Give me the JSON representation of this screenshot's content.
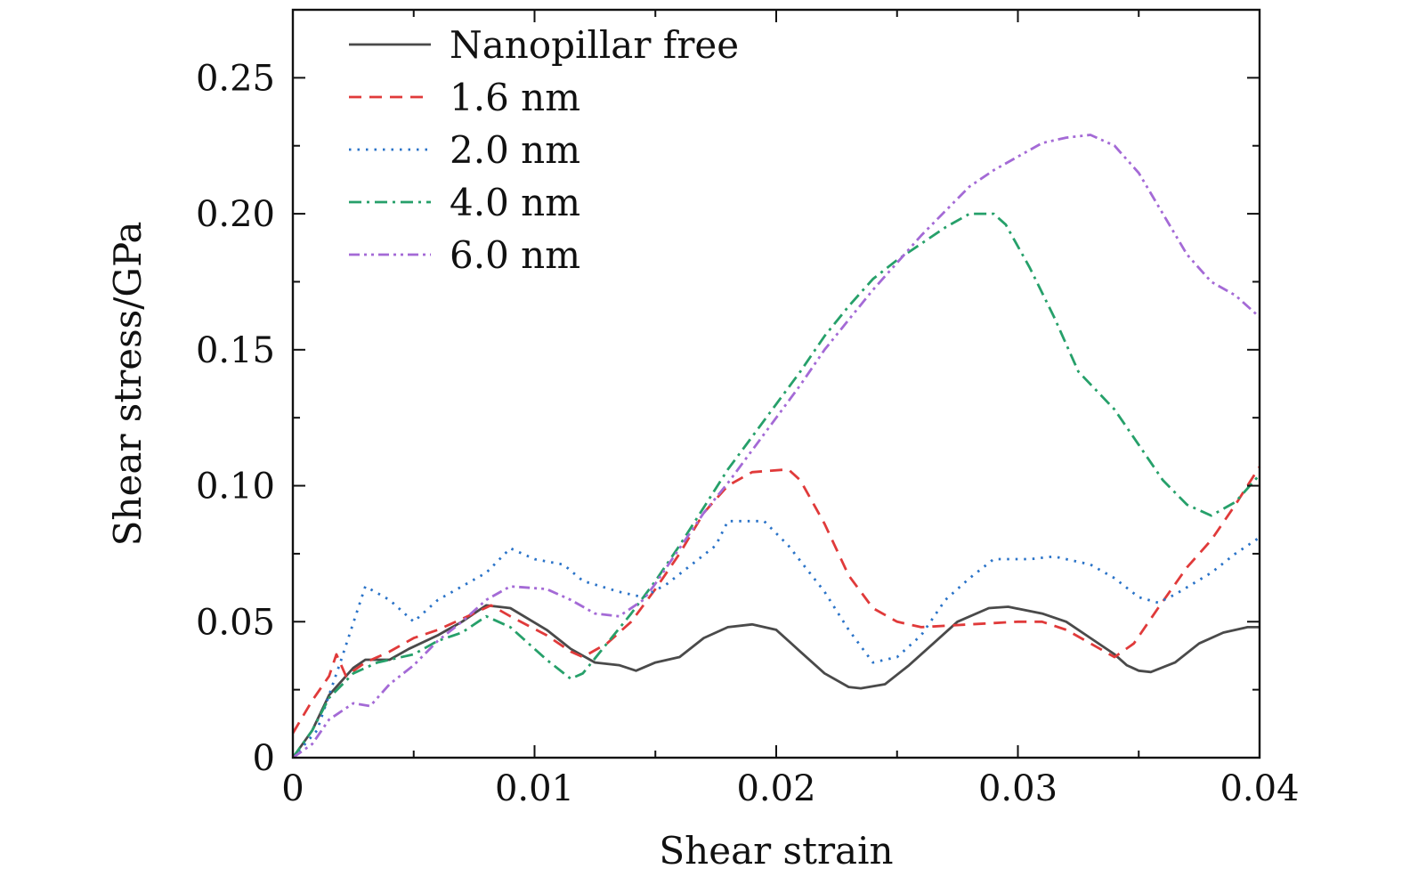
{
  "chart_data": {
    "type": "line",
    "xlabel": "Shear strain",
    "ylabel": "Shear stress/GPa",
    "xlim": [
      0,
      0.04
    ],
    "ylim": [
      0,
      0.275
    ],
    "xticks": [
      0,
      0.01,
      0.02,
      0.03,
      0.04
    ],
    "xtick_labels": [
      "0",
      "0.01",
      "0.02",
      "0.03",
      "0.04"
    ],
    "yticks": [
      0,
      0.05,
      0.1,
      0.15,
      0.2,
      0.25
    ],
    "ytick_labels": [
      "0",
      "0.05",
      "0.10",
      "0.15",
      "0.20",
      "0.25"
    ],
    "grid": false,
    "legend_position": "top-left",
    "series": [
      {
        "name": "Nanopillar free",
        "color": "#4a4a4a",
        "dash": "solid",
        "points": [
          [
            0,
            0
          ],
          [
            0.0008,
            0.01
          ],
          [
            0.0015,
            0.023
          ],
          [
            0.0025,
            0.033
          ],
          [
            0.003,
            0.036
          ],
          [
            0.004,
            0.036
          ],
          [
            0.0048,
            0.04
          ],
          [
            0.006,
            0.045
          ],
          [
            0.007,
            0.05
          ],
          [
            0.008,
            0.056
          ],
          [
            0.009,
            0.055
          ],
          [
            0.0105,
            0.047
          ],
          [
            0.0115,
            0.04
          ],
          [
            0.0125,
            0.035
          ],
          [
            0.0135,
            0.034
          ],
          [
            0.0142,
            0.032
          ],
          [
            0.015,
            0.035
          ],
          [
            0.016,
            0.037
          ],
          [
            0.017,
            0.044
          ],
          [
            0.018,
            0.048
          ],
          [
            0.019,
            0.049
          ],
          [
            0.02,
            0.047
          ],
          [
            0.021,
            0.039
          ],
          [
            0.022,
            0.031
          ],
          [
            0.023,
            0.026
          ],
          [
            0.0235,
            0.0255
          ],
          [
            0.0245,
            0.027
          ],
          [
            0.0255,
            0.034
          ],
          [
            0.0265,
            0.042
          ],
          [
            0.0275,
            0.05
          ],
          [
            0.0288,
            0.055
          ],
          [
            0.0296,
            0.0555
          ],
          [
            0.031,
            0.053
          ],
          [
            0.032,
            0.05
          ],
          [
            0.033,
            0.044
          ],
          [
            0.034,
            0.038
          ],
          [
            0.0345,
            0.034
          ],
          [
            0.035,
            0.032
          ],
          [
            0.0355,
            0.0315
          ],
          [
            0.0365,
            0.035
          ],
          [
            0.0375,
            0.042
          ],
          [
            0.0385,
            0.046
          ],
          [
            0.0395,
            0.048
          ],
          [
            0.04,
            0.048
          ]
        ]
      },
      {
        "name": "1.6 nm",
        "color": "#e03a3a",
        "dash": "dashed",
        "points": [
          [
            0,
            0.009
          ],
          [
            0.0008,
            0.021
          ],
          [
            0.0015,
            0.03
          ],
          [
            0.0018,
            0.038
          ],
          [
            0.0022,
            0.03
          ],
          [
            0.003,
            0.035
          ],
          [
            0.004,
            0.039
          ],
          [
            0.005,
            0.044
          ],
          [
            0.006,
            0.047
          ],
          [
            0.007,
            0.051
          ],
          [
            0.0082,
            0.056
          ],
          [
            0.009,
            0.052
          ],
          [
            0.0105,
            0.045
          ],
          [
            0.0115,
            0.039
          ],
          [
            0.012,
            0.037
          ],
          [
            0.013,
            0.042
          ],
          [
            0.014,
            0.05
          ],
          [
            0.015,
            0.062
          ],
          [
            0.016,
            0.075
          ],
          [
            0.017,
            0.09
          ],
          [
            0.018,
            0.1
          ],
          [
            0.019,
            0.105
          ],
          [
            0.0205,
            0.106
          ],
          [
            0.021,
            0.102
          ],
          [
            0.022,
            0.086
          ],
          [
            0.023,
            0.067
          ],
          [
            0.024,
            0.055
          ],
          [
            0.025,
            0.05
          ],
          [
            0.026,
            0.048
          ],
          [
            0.028,
            0.049
          ],
          [
            0.03,
            0.05
          ],
          [
            0.031,
            0.05
          ],
          [
            0.032,
            0.047
          ],
          [
            0.033,
            0.042
          ],
          [
            0.034,
            0.037
          ],
          [
            0.0348,
            0.042
          ],
          [
            0.0358,
            0.055
          ],
          [
            0.037,
            0.07
          ],
          [
            0.038,
            0.08
          ],
          [
            0.039,
            0.093
          ],
          [
            0.04,
            0.107
          ]
        ]
      },
      {
        "name": "2.0 nm",
        "color": "#2a73c8",
        "dash": "dotted",
        "points": [
          [
            0,
            0
          ],
          [
            0.001,
            0.01
          ],
          [
            0.002,
            0.036
          ],
          [
            0.003,
            0.063
          ],
          [
            0.004,
            0.058
          ],
          [
            0.005,
            0.05
          ],
          [
            0.006,
            0.058
          ],
          [
            0.007,
            0.063
          ],
          [
            0.008,
            0.068
          ],
          [
            0.009,
            0.077
          ],
          [
            0.01,
            0.073
          ],
          [
            0.0112,
            0.071
          ],
          [
            0.012,
            0.065
          ],
          [
            0.0135,
            0.061
          ],
          [
            0.0145,
            0.059
          ],
          [
            0.0155,
            0.064
          ],
          [
            0.0165,
            0.071
          ],
          [
            0.0175,
            0.078
          ],
          [
            0.018,
            0.087
          ],
          [
            0.0195,
            0.087
          ],
          [
            0.0205,
            0.078
          ],
          [
            0.022,
            0.061
          ],
          [
            0.023,
            0.047
          ],
          [
            0.024,
            0.035
          ],
          [
            0.025,
            0.037
          ],
          [
            0.026,
            0.045
          ],
          [
            0.027,
            0.058
          ],
          [
            0.028,
            0.066
          ],
          [
            0.029,
            0.073
          ],
          [
            0.0305,
            0.073
          ],
          [
            0.0315,
            0.074
          ],
          [
            0.033,
            0.071
          ],
          [
            0.034,
            0.066
          ],
          [
            0.035,
            0.059
          ],
          [
            0.0358,
            0.057
          ],
          [
            0.0365,
            0.06
          ],
          [
            0.038,
            0.068
          ],
          [
            0.039,
            0.075
          ],
          [
            0.04,
            0.081
          ]
        ]
      },
      {
        "name": "4.0 nm",
        "color": "#26a06a",
        "dash": "dashdot",
        "points": [
          [
            0,
            0
          ],
          [
            0.0008,
            0.01
          ],
          [
            0.0015,
            0.022
          ],
          [
            0.0025,
            0.031
          ],
          [
            0.0035,
            0.035
          ],
          [
            0.005,
            0.038
          ],
          [
            0.006,
            0.043
          ],
          [
            0.007,
            0.046
          ],
          [
            0.008,
            0.052
          ],
          [
            0.009,
            0.048
          ],
          [
            0.0105,
            0.036
          ],
          [
            0.0115,
            0.029
          ],
          [
            0.012,
            0.031
          ],
          [
            0.013,
            0.042
          ],
          [
            0.014,
            0.053
          ],
          [
            0.015,
            0.065
          ],
          [
            0.016,
            0.078
          ],
          [
            0.017,
            0.092
          ],
          [
            0.018,
            0.106
          ],
          [
            0.019,
            0.118
          ],
          [
            0.02,
            0.13
          ],
          [
            0.021,
            0.142
          ],
          [
            0.022,
            0.155
          ],
          [
            0.023,
            0.166
          ],
          [
            0.024,
            0.176
          ],
          [
            0.025,
            0.183
          ],
          [
            0.026,
            0.189
          ],
          [
            0.027,
            0.195
          ],
          [
            0.028,
            0.2
          ],
          [
            0.029,
            0.2
          ],
          [
            0.0295,
            0.196
          ],
          [
            0.0305,
            0.18
          ],
          [
            0.0315,
            0.162
          ],
          [
            0.0325,
            0.142
          ],
          [
            0.034,
            0.128
          ],
          [
            0.035,
            0.115
          ],
          [
            0.036,
            0.102
          ],
          [
            0.037,
            0.093
          ],
          [
            0.038,
            0.089
          ],
          [
            0.039,
            0.094
          ],
          [
            0.04,
            0.104
          ]
        ]
      },
      {
        "name": "6.0 nm",
        "color": "#a46ad6",
        "dash": "dashdotdot",
        "points": [
          [
            0,
            0
          ],
          [
            0.0008,
            0.005
          ],
          [
            0.0015,
            0.014
          ],
          [
            0.0025,
            0.02
          ],
          [
            0.0032,
            0.019
          ],
          [
            0.004,
            0.027
          ],
          [
            0.005,
            0.034
          ],
          [
            0.006,
            0.043
          ],
          [
            0.007,
            0.05
          ],
          [
            0.008,
            0.058
          ],
          [
            0.009,
            0.063
          ],
          [
            0.0105,
            0.062
          ],
          [
            0.0115,
            0.058
          ],
          [
            0.0125,
            0.053
          ],
          [
            0.0135,
            0.052
          ],
          [
            0.0145,
            0.058
          ],
          [
            0.015,
            0.064
          ],
          [
            0.016,
            0.077
          ],
          [
            0.017,
            0.09
          ],
          [
            0.018,
            0.101
          ],
          [
            0.019,
            0.113
          ],
          [
            0.02,
            0.125
          ],
          [
            0.021,
            0.137
          ],
          [
            0.022,
            0.15
          ],
          [
            0.023,
            0.161
          ],
          [
            0.024,
            0.172
          ],
          [
            0.025,
            0.182
          ],
          [
            0.026,
            0.192
          ],
          [
            0.027,
            0.201
          ],
          [
            0.028,
            0.21
          ],
          [
            0.029,
            0.216
          ],
          [
            0.03,
            0.221
          ],
          [
            0.031,
            0.226
          ],
          [
            0.032,
            0.228
          ],
          [
            0.033,
            0.229
          ],
          [
            0.034,
            0.225
          ],
          [
            0.035,
            0.215
          ],
          [
            0.036,
            0.2
          ],
          [
            0.037,
            0.185
          ],
          [
            0.038,
            0.175
          ],
          [
            0.039,
            0.17
          ],
          [
            0.04,
            0.162
          ]
        ]
      }
    ]
  }
}
